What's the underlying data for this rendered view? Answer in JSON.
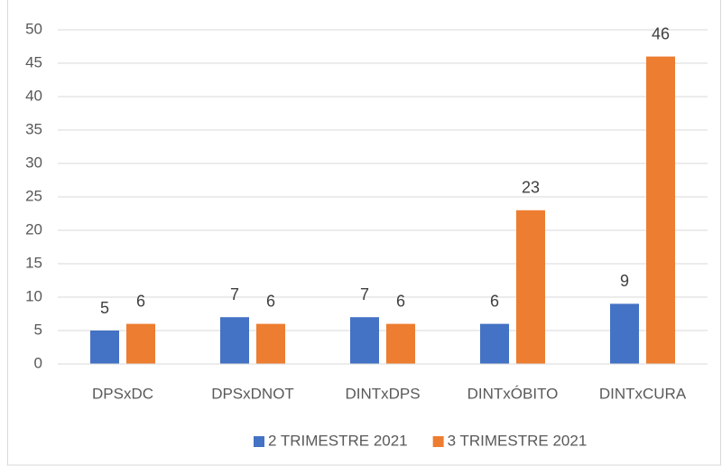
{
  "chart_data": {
    "type": "bar",
    "categories": [
      "DPSxDC",
      "DPSxDNOT",
      "DINTxDPS",
      "DINTxÓBITO",
      "DINTxCURA"
    ],
    "series": [
      {
        "name": "2 TRIMESTRE 2021",
        "color": "#4472c4",
        "values": [
          5,
          7,
          7,
          6,
          9
        ]
      },
      {
        "name": "3 TRIMESTRE 2021",
        "color": "#ed7d31",
        "values": [
          6,
          6,
          6,
          23,
          46
        ]
      }
    ],
    "ylim": [
      0,
      50
    ],
    "yticks": [
      0,
      5,
      10,
      15,
      20,
      25,
      30,
      35,
      40,
      45,
      50
    ],
    "grid": true,
    "legend": "bottom",
    "data_labels": true
  }
}
